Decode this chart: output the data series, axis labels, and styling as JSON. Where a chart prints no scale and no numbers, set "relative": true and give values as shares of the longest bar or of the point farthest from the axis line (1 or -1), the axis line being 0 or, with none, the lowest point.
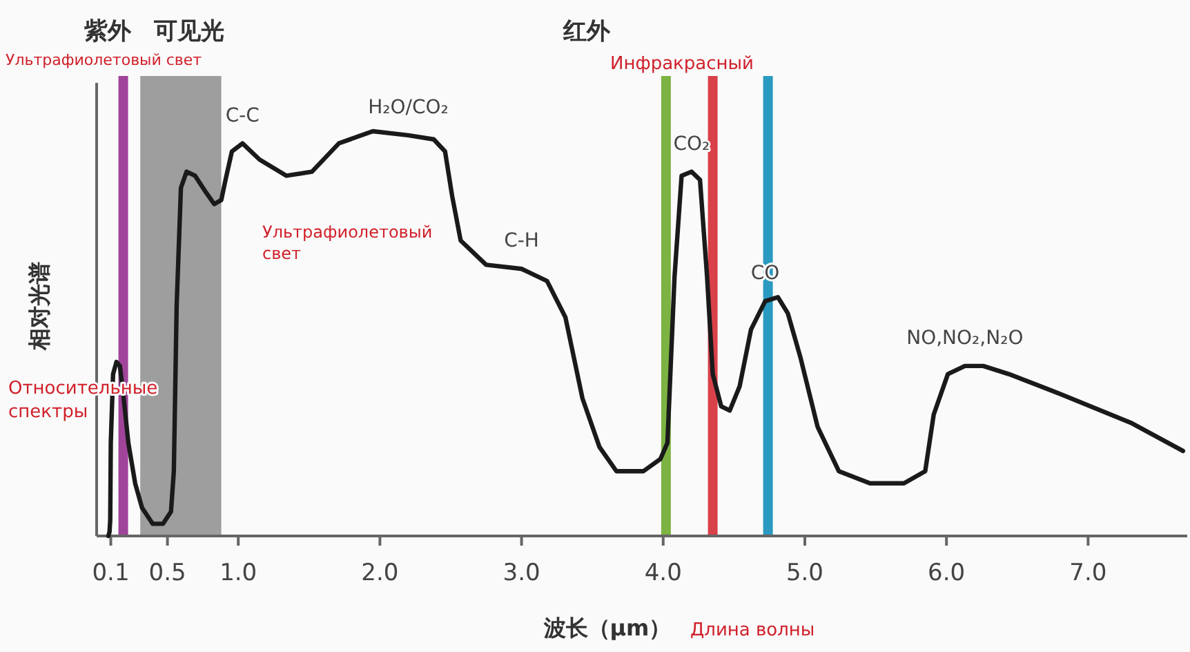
{
  "chart_data": {
    "type": "line",
    "relative": true,
    "color": "#1a1a1a",
    "xlabel": "波长（μm）",
    "ylabel": "相对光谱",
    "xlim": [
      0,
      7.7
    ],
    "xticks": [
      0.1,
      0.5,
      {
        "value": 1,
        "label": "1.0"
      },
      {
        "value": 2,
        "label": "2.0"
      },
      {
        "value": 3,
        "label": "3.0"
      },
      {
        "value": 4,
        "label": "4.0"
      },
      {
        "value": 5,
        "label": "5.0"
      },
      {
        "value": 6,
        "label": "6.0"
      },
      {
        "value": 7,
        "label": "7.0"
      }
    ],
    "x": [
      0.083,
      0.091,
      0.096,
      0.1,
      0.116,
      0.14,
      0.164,
      0.188,
      0.224,
      0.272,
      0.32,
      0.396,
      0.468,
      0.525,
      0.545,
      0.565,
      0.595,
      0.635,
      0.695,
      0.77,
      0.83,
      0.88,
      0.91,
      0.955,
      1.03,
      1.15,
      1.34,
      1.52,
      1.71,
      1.95,
      2.2,
      2.38,
      2.46,
      2.51,
      2.57,
      2.75,
      3.0,
      3.18,
      3.31,
      3.43,
      3.55,
      3.67,
      3.86,
      3.98,
      4.03,
      4.08,
      4.13,
      4.2,
      4.26,
      4.31,
      4.35,
      4.41,
      4.47,
      4.54,
      4.62,
      4.72,
      4.81,
      4.88,
      4.97,
      5.09,
      5.24,
      5.46,
      5.7,
      5.85,
      5.91,
      6.01,
      6.13,
      6.26,
      6.44,
      6.81,
      7.3,
      7.67
    ],
    "values": [
      0.0,
      0.01,
      0.04,
      0.23,
      0.4,
      0.43,
      0.42,
      0.35,
      0.23,
      0.13,
      0.07,
      0.03,
      0.03,
      0.06,
      0.16,
      0.57,
      0.86,
      0.9,
      0.89,
      0.85,
      0.82,
      0.83,
      0.88,
      0.95,
      0.97,
      0.93,
      0.89,
      0.9,
      0.97,
      1.0,
      0.99,
      0.98,
      0.95,
      0.84,
      0.73,
      0.67,
      0.66,
      0.63,
      0.54,
      0.34,
      0.22,
      0.16,
      0.16,
      0.19,
      0.23,
      0.64,
      0.89,
      0.9,
      0.88,
      0.64,
      0.4,
      0.32,
      0.31,
      0.37,
      0.51,
      0.58,
      0.59,
      0.55,
      0.44,
      0.27,
      0.16,
      0.13,
      0.13,
      0.16,
      0.3,
      0.4,
      0.42,
      0.42,
      0.4,
      0.35,
      0.28,
      0.21
    ],
    "bands": [
      {
        "axis": "x",
        "from": 0.308,
        "to": 0.88,
        "label": "可见光",
        "color": "#9e9e9e"
      }
    ],
    "ref_lines": [
      {
        "axis": "x",
        "value": 0.188,
        "color": "#a0449a"
      },
      {
        "axis": "x",
        "value": 4.02,
        "color": "#7cb342"
      },
      {
        "axis": "x",
        "value": 4.35,
        "color": "#d9414a"
      },
      {
        "axis": "x",
        "value": 4.74,
        "color": "#2a9ac0"
      }
    ],
    "annotations": [
      "紫外",
      "红外",
      "Ультрафиолетовый свет",
      "Ультрафиолетовый свет",
      "Инфракрасный",
      "Относительные спектры",
      "Длина волны",
      {
        "text": "C-C",
        "x": 1.03,
        "y": 0.97
      },
      {
        "text": "H₂O/CO₂",
        "x": 2.2,
        "y": 0.99
      },
      {
        "text": "C-H",
        "x": 3.0,
        "y": 0.66
      },
      {
        "text": "CO₂",
        "x": 4.2,
        "y": 0.9
      },
      {
        "text": "CO",
        "x": 4.72,
        "y": 0.58
      },
      {
        "text": "NO,NO₂,N₂O",
        "x": 6.13,
        "y": 0.42
      }
    ]
  }
}
